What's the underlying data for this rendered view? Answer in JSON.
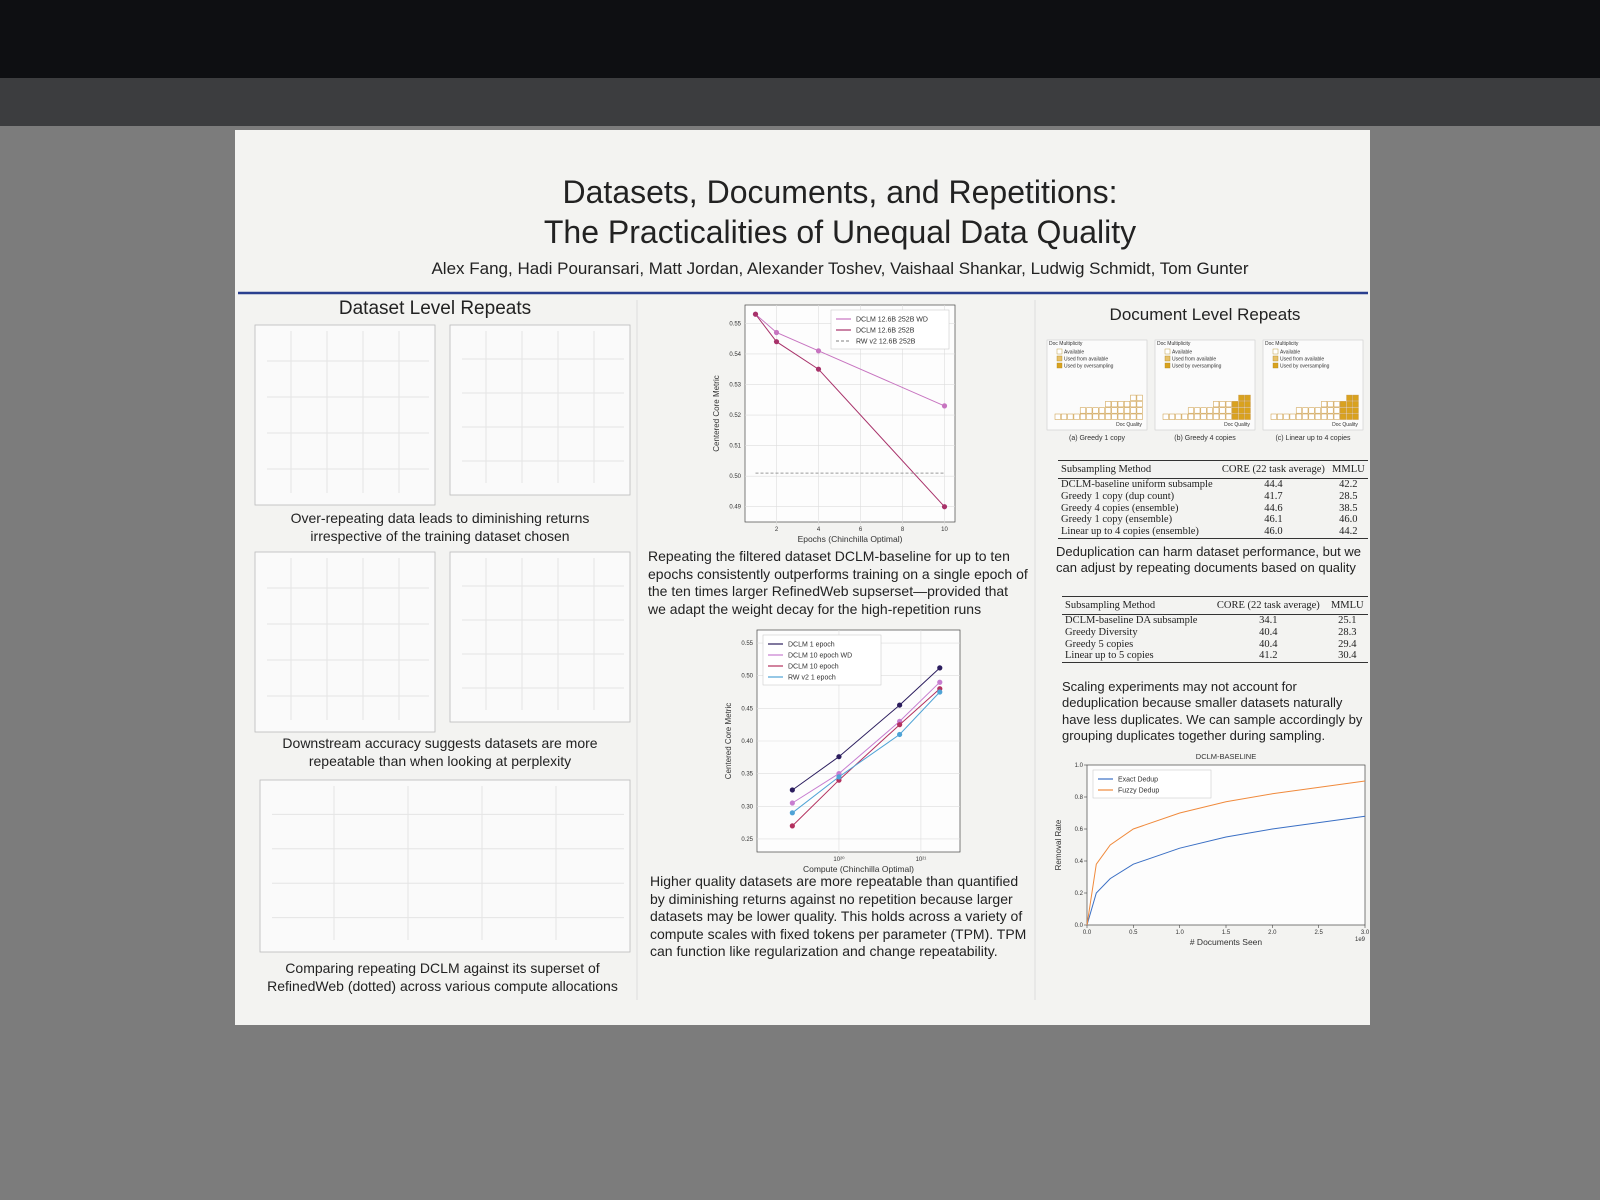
{
  "poster": {
    "title_lines": [
      "Datasets, Documents, and Repetitions:",
      "The Practicalities of Unequal Data Quality"
    ],
    "authors": "Alex Fang, Hadi Pouransari, Matt Jordan, Alexander Toshev, Vaishaal Shankar, Ludwig Schmidt, Tom Gunter",
    "left": {
      "heading": "Dataset Level Repeats",
      "captions": [
        "Over-repeating data leads to diminishing returns irrespective of the training dataset chosen",
        "Downstream accuracy suggests datasets are more repeatable than when looking at perplexity",
        "Comparing repeating DCLM against its superset of RefinedWeb (dotted) across various compute allocations"
      ]
    },
    "center": {
      "paragraphs": [
        "Repeating the filtered dataset DCLM-baseline for up to ten epochs consistently outperforms training on a single epoch of the ten times larger RefinedWeb supserset—provided that we adapt the weight decay for the high-repetition runs",
        "Higher quality datasets are more repeatable than quantified by diminishing returns against no repetition because larger datasets may be lower quality. This holds across a variety of compute scales with fixed tokens per parameter (TPM). TPM can function like regularization and change repeatability."
      ]
    },
    "right": {
      "heading": "Document Level Repeats",
      "panels": [
        {
          "legend_title": "Doc Multiplicity",
          "legend": [
            "Available",
            "Used from available",
            "Used by oversampling"
          ],
          "x_label": "Doc Quality",
          "caption": "(a) Greedy 1 copy"
        },
        {
          "legend_title": "Doc Multiplicity",
          "legend": [
            "Available",
            "Used from available",
            "Used by oversampling"
          ],
          "x_label": "Doc Quality",
          "caption": "(b) Greedy 4 copies"
        },
        {
          "legend_title": "Doc Multiplicity",
          "legend": [
            "Available",
            "Used from available",
            "Used by oversampling"
          ],
          "x_label": "Doc Quality",
          "caption": "(c) Linear up to 4 copies"
        }
      ],
      "tables": [
        {
          "columns": [
            "Subsampling Method",
            "CORE (22 task average)",
            "MMLU"
          ],
          "rows": [
            [
              "DCLM-baseline uniform subsample",
              "44.4",
              "42.2"
            ],
            [
              "Greedy 1 copy (dup count)",
              "41.7",
              "28.5"
            ],
            [
              "Greedy 4 copies (ensemble)",
              "44.6",
              "38.5"
            ],
            [
              "Greedy 1 copy (ensemble)",
              "46.1",
              "46.0"
            ],
            [
              "Linear up to 4 copies (ensemble)",
              "46.0",
              "44.2"
            ]
          ]
        },
        {
          "columns": [
            "Subsampling Method",
            "CORE (22 task average)",
            "MMLU"
          ],
          "rows": [
            [
              "DCLM-baseline DA subsample",
              "34.1",
              "25.1"
            ],
            [
              "Greedy Diversity",
              "40.4",
              "28.3"
            ],
            [
              "Greedy 5 copies",
              "40.4",
              "29.4"
            ],
            [
              "Linear up to 5 copies",
              "41.2",
              "30.4"
            ]
          ]
        }
      ],
      "paragraphs": [
        "Deduplication can harm dataset performance, but we can adjust by repeating documents based on quality",
        "Scaling experiments may not account for deduplication because smaller datasets naturally have less duplicates. We can sample accordingly by grouping duplicates together during sampling."
      ]
    }
  },
  "chart_data": [
    {
      "type": "line",
      "x_label": "Epochs (Chinchilla Optimal)",
      "y_label": "Centered Core Metric",
      "xlim": [
        0.5,
        10.5
      ],
      "ylim": [
        0.485,
        0.556
      ],
      "xticks": [
        2,
        4,
        6,
        8,
        10
      ],
      "yticks": [
        0.49,
        {
          "value": 0.5,
          "label": "0.50"
        },
        0.51,
        0.52,
        0.53,
        0.54,
        0.55
      ],
      "grid": true,
      "legend": "upper right",
      "series": [
        {
          "name": "DCLM 12.6B 252B WD",
          "color": "#c774c0",
          "x": [
            1,
            2,
            4,
            10
          ],
          "values": [
            0.553,
            0.547,
            0.541,
            0.523
          ]
        },
        {
          "name": "DCLM 12.6B 252B",
          "color": "#a8326a",
          "x": [
            1,
            2,
            4,
            10
          ],
          "values": [
            0.553,
            0.544,
            0.535,
            0.49
          ]
        },
        {
          "name": "RW v2 12.6B 252B",
          "color": "#9a9a9a",
          "line_style": "dashed",
          "x": [
            1,
            10
          ],
          "values": [
            0.501,
            0.501
          ]
        }
      ]
    },
    {
      "type": "line",
      "x_label": "Compute (Chinchilla Optimal)",
      "y_label": "Centered Core Metric",
      "log_x": true,
      "xlim": [
        10000000000000000000,
        3000000000000000000000
      ],
      "ylim": [
        0.23,
        0.57
      ],
      "xticks": [
        {
          "value": 100000000000000000000,
          "label": "10²⁰"
        },
        {
          "value": 1000000000000000000000,
          "label": "10²¹"
        }
      ],
      "yticks": [
        0.25,
        {
          "value": 0.3,
          "label": "0.30"
        },
        0.35,
        {
          "value": 0.4,
          "label": "0.40"
        },
        0.45,
        {
          "value": 0.5,
          "label": "0.50"
        },
        0.55
      ],
      "grid": true,
      "legend": "upper left",
      "series": [
        {
          "name": "DCLM 1 epoch",
          "color": "#2b1d5e",
          "x": [
            27000000000000000000,
            100000000000000000000,
            550000000000000000000,
            1700000000000000000000
          ],
          "values": [
            0.325,
            0.376,
            0.455,
            0.512
          ]
        },
        {
          "name": "DCLM 10 epoch WD",
          "color": "#c77dd0",
          "x": [
            27000000000000000000,
            100000000000000000000,
            550000000000000000000,
            1700000000000000000000
          ],
          "values": [
            0.305,
            0.35,
            0.43,
            0.49
          ]
        },
        {
          "name": "DCLM 10 epoch",
          "color": "#b3305e",
          "x": [
            27000000000000000000,
            100000000000000000000,
            550000000000000000000,
            1700000000000000000000
          ],
          "values": [
            0.27,
            0.34,
            0.425,
            0.48
          ]
        },
        {
          "name": "RW v2 1 epoch",
          "color": "#4fa3d6",
          "x": [
            27000000000000000000,
            100000000000000000000,
            550000000000000000000,
            1700000000000000000000
          ],
          "values": [
            0.29,
            0.345,
            0.41,
            0.475
          ]
        }
      ]
    },
    {
      "type": "line",
      "title": "DCLM-BASELINE",
      "x_label": "# Documents Seen",
      "y_label": "Removal Rate",
      "x_offset_label": "1e9",
      "xlim": [
        0,
        3000000000
      ],
      "ylim": [
        0,
        1
      ],
      "xticks": [
        {
          "value": 0,
          "label": "0.0"
        },
        {
          "value": 500000000,
          "label": "0.5"
        },
        {
          "value": 1000000000,
          "label": "1.0"
        },
        {
          "value": 1500000000,
          "label": "1.5"
        },
        {
          "value": 2000000000,
          "label": "2.0"
        },
        {
          "value": 2500000000,
          "label": "2.5"
        },
        {
          "value": 3000000000,
          "label": "3.0"
        }
      ],
      "yticks": [
        {
          "value": 0,
          "label": "0.0"
        },
        0.2,
        0.4,
        0.6,
        0.8,
        {
          "value": 1,
          "label": "1.0"
        }
      ],
      "grid": false,
      "legend": "upper left",
      "series": [
        {
          "name": "Exact Dedup",
          "color": "#3a6fc4",
          "x": [
            0,
            100000000,
            250000000,
            500000000,
            1000000000,
            1500000000,
            2000000000,
            2500000000,
            3000000000
          ],
          "values": [
            0,
            0.2,
            0.29,
            0.38,
            0.48,
            0.55,
            0.6,
            0.64,
            0.68
          ]
        },
        {
          "name": "Fuzzy Dedup",
          "color": "#f08a3c",
          "x": [
            0,
            100000000,
            250000000,
            500000000,
            1000000000,
            1500000000,
            2000000000,
            2500000000,
            3000000000
          ],
          "values": [
            0,
            0.38,
            0.5,
            0.6,
            0.7,
            0.77,
            0.82,
            0.86,
            0.9
          ]
        }
      ]
    }
  ]
}
